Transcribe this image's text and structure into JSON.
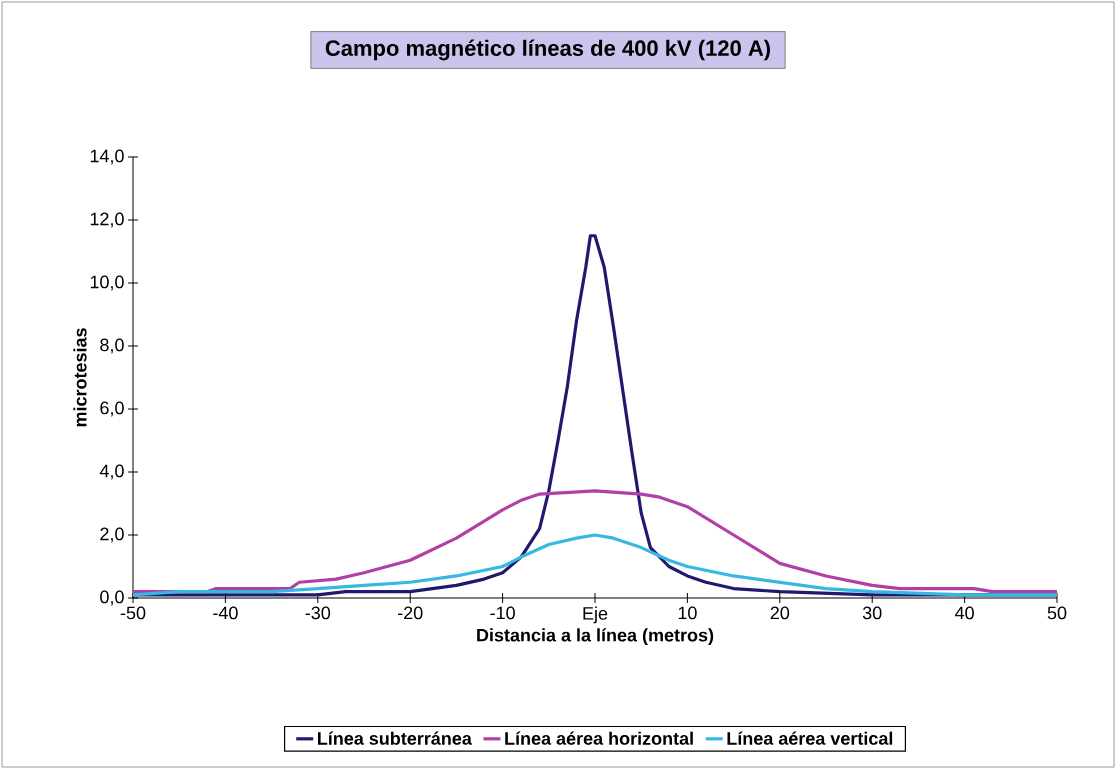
{
  "chart_data": {
    "type": "line",
    "title": "Campo magnético líneas de 400 kV (120 A)",
    "xlabel": "Distancia a la línea (metros)",
    "ylabel": "microtesias",
    "xlim": [
      -50,
      50
    ],
    "ylim": [
      0,
      14
    ],
    "xticks": [
      -50,
      -40,
      -30,
      -20,
      -10,
      {
        "value": 0,
        "label": "Eje"
      },
      10,
      20,
      30,
      40,
      50
    ],
    "yticks": [
      {
        "value": 0,
        "label": "0,0"
      },
      {
        "value": 2,
        "label": "2,0"
      },
      {
        "value": 4,
        "label": "4,0"
      },
      {
        "value": 6,
        "label": "6,0"
      },
      {
        "value": 8,
        "label": "8,0"
      },
      {
        "value": 10,
        "label": "10,0"
      },
      {
        "value": 12,
        "label": "12,0"
      },
      {
        "value": 14,
        "label": "14,0"
      }
    ],
    "grid": false,
    "legend": "bottom",
    "marker": "none",
    "line_style": "solid",
    "series": [
      {
        "name": "Línea subterránea",
        "color": "#1f1a6e",
        "x": [
          -50,
          -45,
          -30,
          -27,
          -20,
          -15,
          -12,
          -10,
          -8,
          -6,
          -5,
          -4,
          -3,
          -2,
          -1,
          -0.5,
          0,
          1,
          2,
          3,
          4,
          5,
          6,
          8,
          10,
          12,
          15,
          20,
          30,
          50
        ],
        "values": [
          0.1,
          0.1,
          0.1,
          0.2,
          0.2,
          0.4,
          0.6,
          0.8,
          1.3,
          2.2,
          3.4,
          5.0,
          6.7,
          8.8,
          10.5,
          11.5,
          11.5,
          10.5,
          8.6,
          6.6,
          4.6,
          2.7,
          1.6,
          1.0,
          0.7,
          0.5,
          0.3,
          0.2,
          0.1,
          0.1
        ]
      },
      {
        "name": "Línea aérea horizontal",
        "color": "#b23fa6",
        "x": [
          -50,
          -42,
          -41,
          -33,
          -32,
          -28,
          -25,
          -20,
          -15,
          -10,
          -8,
          -6,
          0,
          5,
          7,
          10,
          15,
          20,
          25,
          30,
          33,
          41,
          43,
          50
        ],
        "values": [
          0.2,
          0.2,
          0.3,
          0.3,
          0.5,
          0.6,
          0.8,
          1.2,
          1.9,
          2.8,
          3.1,
          3.3,
          3.4,
          3.3,
          3.2,
          2.9,
          2.0,
          1.1,
          0.7,
          0.4,
          0.3,
          0.3,
          0.2,
          0.2
        ]
      },
      {
        "name": "Línea aérea vertical",
        "color": "#36b8e0",
        "x": [
          -50,
          -45,
          -35,
          -30,
          -25,
          -20,
          -15,
          -10,
          -8,
          -5,
          -2,
          0,
          2,
          5,
          8,
          10,
          15,
          20,
          25,
          30,
          40,
          50
        ],
        "values": [
          0.1,
          0.2,
          0.2,
          0.3,
          0.4,
          0.5,
          0.7,
          1.0,
          1.3,
          1.7,
          1.9,
          2.0,
          1.9,
          1.6,
          1.2,
          1.0,
          0.7,
          0.5,
          0.3,
          0.2,
          0.1,
          0.1
        ]
      }
    ]
  }
}
